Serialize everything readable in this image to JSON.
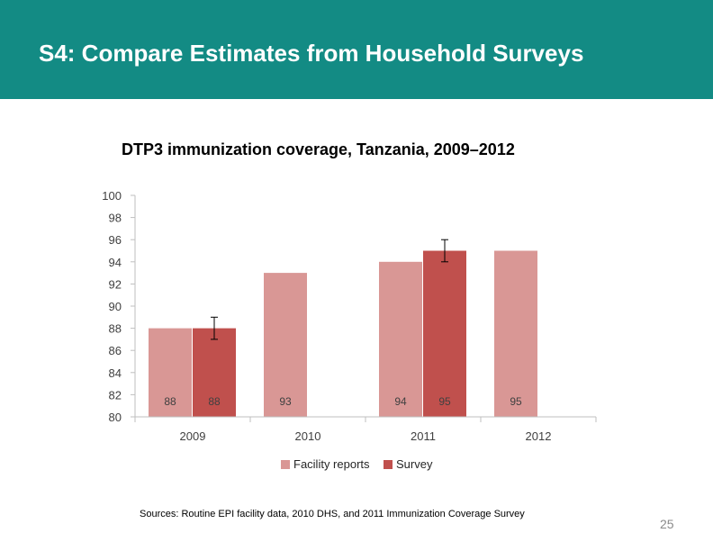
{
  "slide": {
    "title": "S4: Compare Estimates from Household Surveys",
    "source": "Sources: Routine EPI facility data, 2010 DHS, and 2011 Immunization Coverage Survey",
    "page_number": "25"
  },
  "colors": {
    "banner": "#138b84",
    "facility": "#d99795",
    "survey": "#c0504d"
  },
  "chart_data": {
    "type": "bar",
    "title": "DTP3 immunization coverage, Tanzania, 2009–2012",
    "categories": [
      "2009",
      "2010",
      "2011",
      "2012"
    ],
    "series": [
      {
        "name": "Facility reports",
        "values": [
          88,
          93,
          94,
          95
        ]
      },
      {
        "name": "Survey",
        "values": [
          88,
          null,
          95,
          null
        ]
      }
    ],
    "error_bars": {
      "series": "Survey",
      "ranges": [
        [
          87,
          89
        ],
        null,
        [
          94,
          96
        ],
        null
      ]
    },
    "ylim": [
      80,
      100
    ],
    "yticks": [
      80,
      82,
      84,
      86,
      88,
      90,
      92,
      94,
      96,
      98,
      100
    ],
    "xlabel": "",
    "ylabel": "",
    "grid": false,
    "legend": "bottom"
  }
}
